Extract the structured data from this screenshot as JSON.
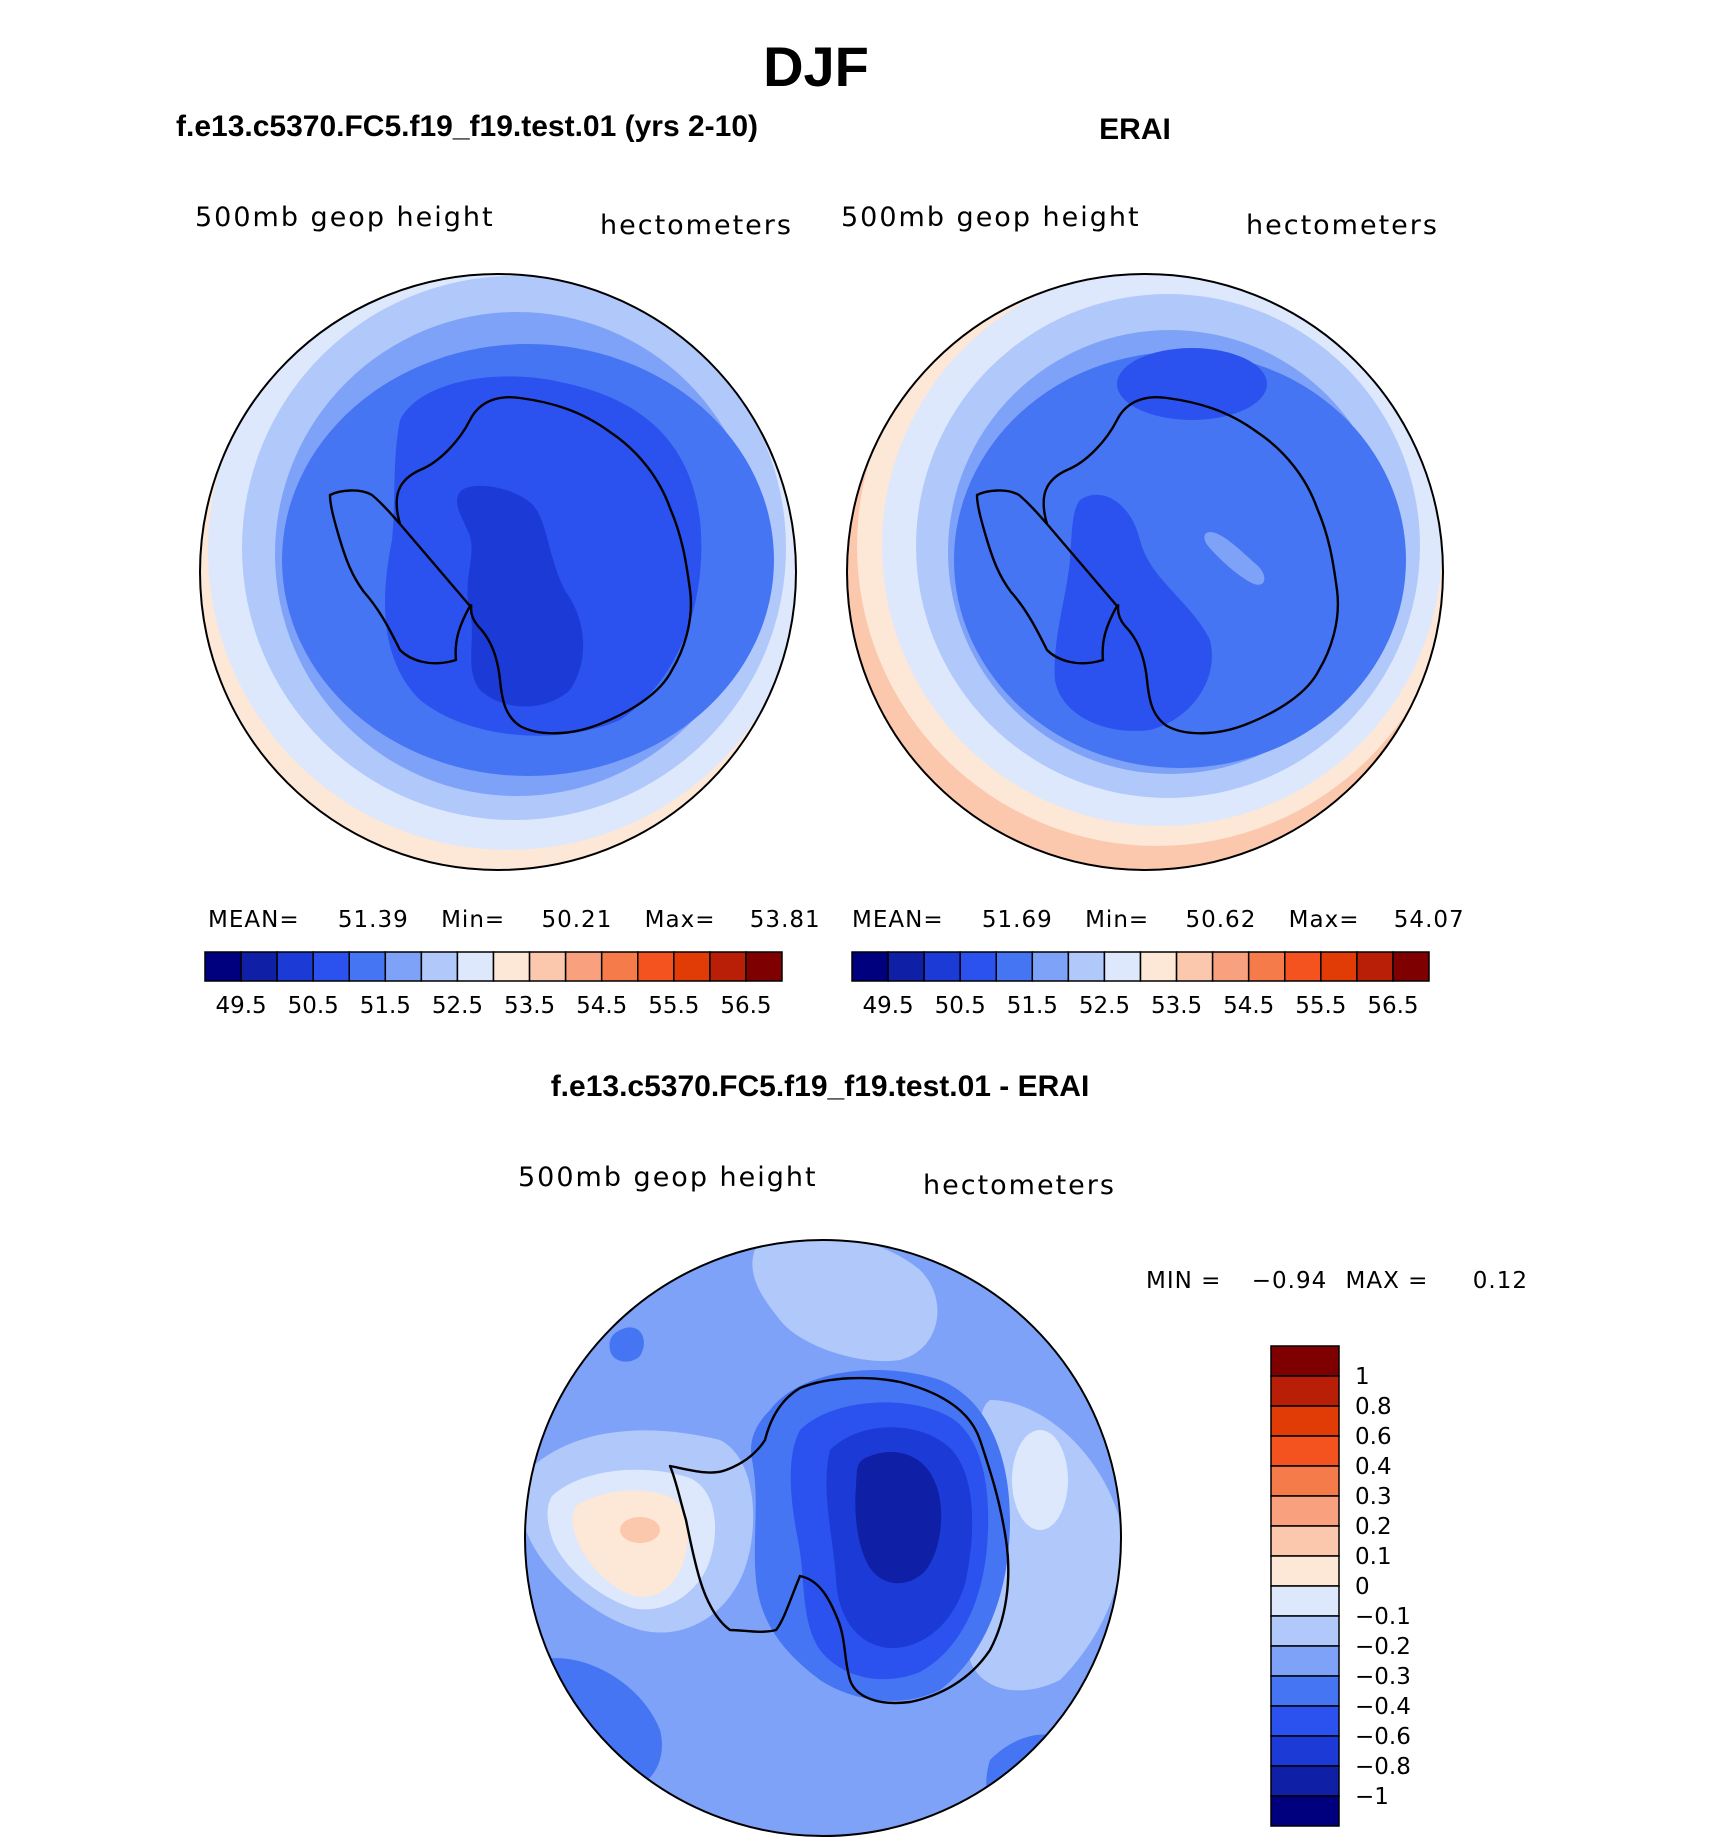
{
  "figure": {
    "season": "DJF",
    "panels": [
      {
        "id": "model",
        "case_title": "f.e13.c5370.FC5.f19_f19.test.01 (yrs 2-10)",
        "left_label": "500mb geop height",
        "right_label": "hectometers",
        "stats": {
          "mean_label": "MEAN=",
          "mean": "51.39",
          "min_label": "Min=",
          "min": "50.21",
          "max_label": "Max=",
          "max": "53.81"
        }
      },
      {
        "id": "obs",
        "case_title": "ERAI",
        "left_label": "500mb geop height",
        "right_label": "hectometers",
        "stats": {
          "mean_label": "MEAN=",
          "mean": "51.69",
          "min_label": "Min=",
          "min": "50.62",
          "max_label": "Max=",
          "max": "54.07"
        }
      },
      {
        "id": "diff",
        "case_title": "f.e13.c5370.FC5.f19_f19.test.01 - ERAI",
        "left_label": "500mb geop height",
        "right_label": "hectometers",
        "stats": {
          "min_label": "MIN =",
          "min": "−0.94",
          "max_label": "MAX =",
          "max": "0.12"
        }
      }
    ]
  },
  "chart_data": [
    {
      "type": "polar-contour-map",
      "projection": "south polar stereographic",
      "title": "f.e13.c5370.FC5.f19_f19.test.01 (yrs 2-10)",
      "variable": "500mb geop height",
      "units": "hectometers",
      "mean": 51.39,
      "min": 50.21,
      "max": 53.81,
      "colorbar": {
        "orientation": "horizontal",
        "levels": [
          49.5,
          50,
          50.5,
          51,
          51.5,
          52,
          52.5,
          53,
          53.5,
          54,
          54.5,
          55,
          55.5,
          56,
          56.5
        ],
        "tick_labels": [
          "49.5",
          "50.5",
          "51.5",
          "52.5",
          "53.5",
          "54.5",
          "55.5",
          "56.5"
        ],
        "colors": [
          "#00007f",
          "#0f1fa6",
          "#1b3ad6",
          "#2b52ef",
          "#4575f3",
          "#7ea2f8",
          "#b1c8fb",
          "#dde8fd",
          "#fde7d6",
          "#fbc7ad",
          "#f9a07f",
          "#f57b4b",
          "#f4521e",
          "#e23c06",
          "#b91f06",
          "#7f0000"
        ]
      }
    },
    {
      "type": "polar-contour-map",
      "projection": "south polar stereographic",
      "title": "ERAI",
      "variable": "500mb geop height",
      "units": "hectometers",
      "mean": 51.69,
      "min": 50.62,
      "max": 54.07,
      "colorbar": {
        "orientation": "horizontal",
        "levels": [
          49.5,
          50,
          50.5,
          51,
          51.5,
          52,
          52.5,
          53,
          53.5,
          54,
          54.5,
          55,
          55.5,
          56,
          56.5
        ],
        "tick_labels": [
          "49.5",
          "50.5",
          "51.5",
          "52.5",
          "53.5",
          "54.5",
          "55.5",
          "56.5"
        ],
        "colors": [
          "#00007f",
          "#0f1fa6",
          "#1b3ad6",
          "#2b52ef",
          "#4575f3",
          "#7ea2f8",
          "#b1c8fb",
          "#dde8fd",
          "#fde7d6",
          "#fbc7ad",
          "#f9a07f",
          "#f57b4b",
          "#f4521e",
          "#e23c06",
          "#b91f06",
          "#7f0000"
        ]
      }
    },
    {
      "type": "polar-contour-map",
      "projection": "south polar stereographic",
      "title": "f.e13.c5370.FC5.f19_f19.test.01 - ERAI",
      "variable": "500mb geop height",
      "units": "hectometers",
      "min": -0.94,
      "max": 0.12,
      "colorbar": {
        "orientation": "vertical",
        "levels": [
          1,
          0.8,
          0.6,
          0.4,
          0.3,
          0.2,
          0.1,
          0,
          -0.1,
          -0.2,
          -0.3,
          -0.4,
          -0.6,
          -0.8,
          -1
        ],
        "tick_labels": [
          "1",
          "0.8",
          "0.6",
          "0.4",
          "0.3",
          "0.2",
          "0.1",
          "0",
          "−0.1",
          "−0.2",
          "−0.3",
          "−0.4",
          "−0.6",
          "−0.8",
          "−1"
        ],
        "colors_top_to_bottom": [
          "#7f0000",
          "#b91f06",
          "#e23c06",
          "#f4521e",
          "#f57b4b",
          "#f9a07f",
          "#fbc7ad",
          "#fde7d6",
          "#dde8fd",
          "#b1c8fb",
          "#7ea2f8",
          "#4575f3",
          "#2b52ef",
          "#1b3ad6",
          "#0f1fa6",
          "#00007f"
        ]
      }
    }
  ]
}
